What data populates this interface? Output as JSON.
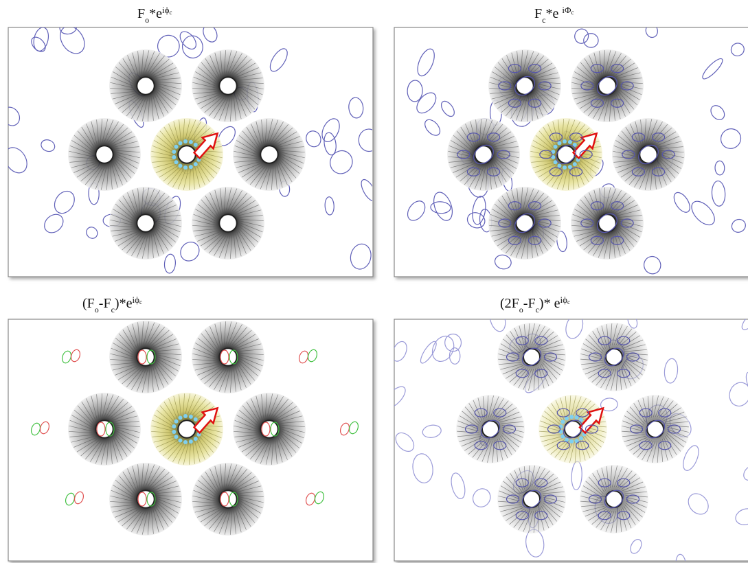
{
  "panels": [
    {
      "title": [
        "F",
        "o",
        "*e",
        "iϕ",
        "c"
      ]
    },
    {
      "title": [
        "F",
        "c",
        "*e ",
        "iΦ",
        "c"
      ]
    },
    {
      "title": [
        "(F",
        "o",
        "-F",
        "c",
        ")*e",
        "iϕ",
        "c"
      ]
    },
    {
      "title": [
        "(2F",
        "o",
        "-F",
        "c",
        ")* e",
        "iϕ",
        "c"
      ]
    }
  ]
}
